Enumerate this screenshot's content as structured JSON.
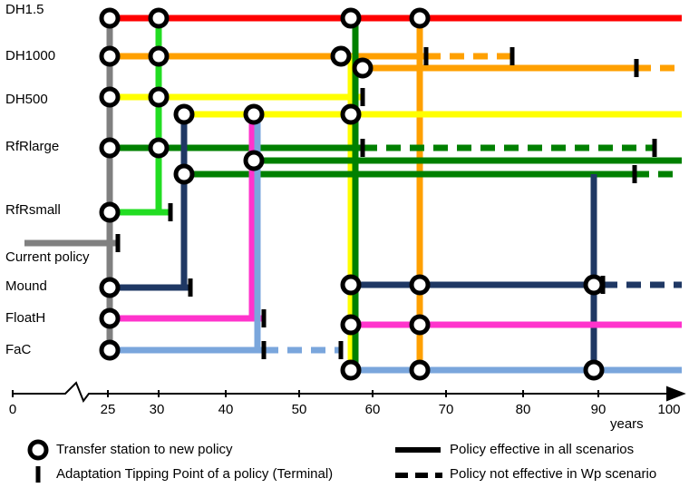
{
  "policies": {
    "dh15": "DH1.5",
    "dh1000": "DH1000",
    "dh500": "DH500",
    "rfrlarge": "RfRlarge",
    "rfrsmall": "RfRsmall",
    "current": "Current policy",
    "mound": "Mound",
    "floath": "FloatH",
    "fac": "FaC"
  },
  "axis": {
    "ticks": [
      "0",
      "25",
      "30",
      "40",
      "50",
      "60",
      "70",
      "80",
      "90",
      "100"
    ],
    "unit_label": "years"
  },
  "legend": {
    "transfer_station": "Transfer station to new policy",
    "tipping_point": "Adaptation Tipping Point of a policy (Terminal)",
    "effective_all": "Policy effective in all scenarios",
    "not_effective_wp": "Policy not effective in Wp scenario"
  },
  "colors": {
    "dh15": "#ff0000",
    "dh1000": "#ffa000",
    "dh500": "#ffff00",
    "rfrlarge": "#008000",
    "rfrsmall": "#22dd22",
    "current": "#808080",
    "mound": "#1f3864",
    "floath": "#ff33cc",
    "fac": "#7aa6dc"
  }
}
